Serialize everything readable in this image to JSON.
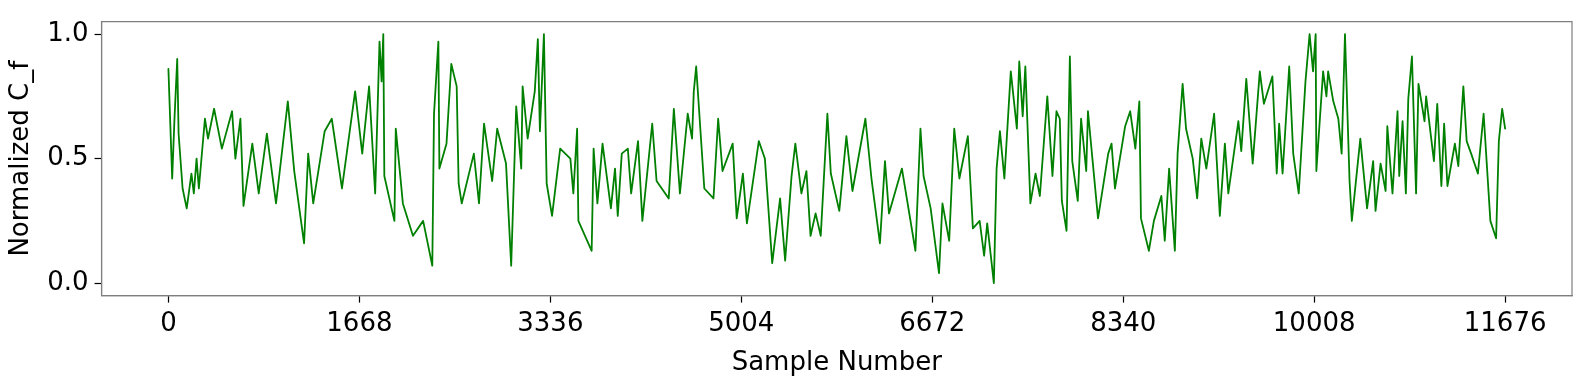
{
  "chart_data": {
    "type": "line",
    "xlabel": "Sample Number",
    "ylabel": "Normalized C_f",
    "grid": false,
    "legend": false,
    "marker": "none",
    "line_style": "solid",
    "xlim": [
      -584,
      12260
    ],
    "xticks": [
      0,
      1668,
      3336,
      5004,
      6672,
      8340,
      10008,
      11676
    ],
    "ylim": [
      -0.05,
      1.05
    ],
    "yticks": [
      {
        "value": 0,
        "label": "0.0"
      },
      {
        "value": 0.5,
        "label": "0.5"
      },
      {
        "value": 1,
        "label": "1.0"
      }
    ],
    "series": [
      {
        "color": "#008000",
        "x": [
          0,
          33,
          53,
          77,
          89,
          124,
          160,
          201,
          222,
          246,
          266,
          319,
          346,
          399,
          467,
          556,
          585,
          629,
          656,
          733,
          789,
          860,
          940,
          1043,
          1099,
          1185,
          1221,
          1265,
          1365,
          1427,
          1516,
          1631,
          1693,
          1753,
          1806,
          1844,
          1862,
          1877,
          1886,
          1974,
          1986,
          2048,
          2136,
          2225,
          2305,
          2320,
          2358,
          2367,
          2429,
          2471,
          2518,
          2535,
          2562,
          2668,
          2713,
          2757,
          2828,
          2872,
          2949,
          2994,
          3038,
          3082,
          3094,
          3138,
          3200,
          3227,
          3245,
          3280,
          3304,
          3351,
          3422,
          3511,
          3537,
          3570,
          3581,
          3697,
          3714,
          3747,
          3792,
          3865,
          3901,
          3925,
          3960,
          4013,
          4042,
          4102,
          4140,
          4226,
          4264,
          4370,
          4415,
          4468,
          4536,
          4574,
          4589,
          4610,
          4681,
          4761,
          4802,
          4840,
          4929,
          4964,
          5018,
          5053,
          5157,
          5210,
          5274,
          5343,
          5387,
          5443,
          5476,
          5529,
          5573,
          5609,
          5653,
          5698,
          5756,
          5786,
          5860,
          5922,
          5975,
          6088,
          6141,
          6215,
          6259,
          6294,
          6407,
          6525,
          6569,
          6596,
          6658,
          6731,
          6761,
          6820,
          6864,
          6909,
          6983,
          7027,
          7086,
          7125,
          7152,
          7210,
          7234,
          7263,
          7302,
          7358,
          7411,
          7432,
          7462,
          7485,
          7529,
          7574,
          7612,
          7677,
          7722,
          7757,
          7786,
          7804,
          7845,
          7874,
          7895,
          7943,
          7972,
          8017,
          8032,
          8120,
          8209,
          8238,
          8268,
          8357,
          8401,
          8446,
          8481,
          8495,
          8564,
          8608,
          8673,
          8703,
          8741,
          8791,
          8815,
          8859,
          8889,
          8947,
          8986,
          9022,
          9066,
          9134,
          9184,
          9228,
          9258,
          9346,
          9371,
          9415,
          9471,
          9533,
          9569,
          9643,
          9681,
          9702,
          9732,
          9790,
          9825,
          9873,
          9932,
          9968,
          9998,
          10021,
          10027,
          10086,
          10115,
          10130,
          10175,
          10219,
          10248,
          10277,
          10317,
          10337,
          10411,
          10470,
          10523,
          10544,
          10588,
          10632,
          10647,
          10692,
          10736,
          10751,
          10780,
          10809,
          10830,
          10862,
          10898,
          10919,
          10972,
          10986,
          11054,
          11083,
          11119,
          11143,
          11172,
          11237,
          11267,
          11311,
          11340,
          11379,
          11438,
          11488,
          11547,
          11597,
          11621,
          11650,
          11676
        ],
        "values": [
          0.86,
          0.42,
          0.66,
          0.9,
          0.6,
          0.38,
          0.3,
          0.44,
          0.36,
          0.5,
          0.38,
          0.66,
          0.58,
          0.7,
          0.54,
          0.69,
          0.5,
          0.66,
          0.31,
          0.56,
          0.36,
          0.6,
          0.32,
          0.73,
          0.45,
          0.16,
          0.52,
          0.32,
          0.61,
          0.66,
          0.38,
          0.77,
          0.52,
          0.79,
          0.36,
          0.97,
          0.81,
          1.0,
          0.43,
          0.25,
          0.62,
          0.32,
          0.19,
          0.25,
          0.07,
          0.68,
          0.97,
          0.46,
          0.56,
          0.88,
          0.79,
          0.4,
          0.32,
          0.52,
          0.32,
          0.64,
          0.41,
          0.62,
          0.48,
          0.07,
          0.71,
          0.46,
          0.79,
          0.58,
          0.77,
          0.98,
          0.61,
          1.0,
          0.4,
          0.27,
          0.54,
          0.5,
          0.36,
          0.62,
          0.25,
          0.13,
          0.54,
          0.32,
          0.56,
          0.3,
          0.46,
          0.27,
          0.52,
          0.54,
          0.36,
          0.57,
          0.25,
          0.64,
          0.41,
          0.34,
          0.7,
          0.36,
          0.68,
          0.58,
          0.77,
          0.87,
          0.38,
          0.34,
          0.66,
          0.45,
          0.56,
          0.26,
          0.44,
          0.24,
          0.57,
          0.5,
          0.08,
          0.34,
          0.09,
          0.43,
          0.56,
          0.36,
          0.45,
          0.19,
          0.28,
          0.19,
          0.68,
          0.44,
          0.29,
          0.59,
          0.37,
          0.66,
          0.42,
          0.16,
          0.49,
          0.28,
          0.46,
          0.13,
          0.62,
          0.43,
          0.3,
          0.04,
          0.32,
          0.17,
          0.62,
          0.42,
          0.59,
          0.22,
          0.25,
          0.11,
          0.24,
          0.0,
          0.46,
          0.61,
          0.42,
          0.85,
          0.62,
          0.89,
          0.67,
          0.87,
          0.32,
          0.44,
          0.35,
          0.75,
          0.43,
          0.69,
          0.66,
          0.33,
          0.21,
          0.91,
          0.49,
          0.33,
          0.66,
          0.45,
          0.69,
          0.26,
          0.52,
          0.56,
          0.38,
          0.63,
          0.69,
          0.54,
          0.73,
          0.26,
          0.13,
          0.25,
          0.35,
          0.17,
          0.46,
          0.13,
          0.52,
          0.8,
          0.62,
          0.5,
          0.34,
          0.58,
          0.46,
          0.68,
          0.27,
          0.56,
          0.36,
          0.65,
          0.53,
          0.82,
          0.48,
          0.85,
          0.72,
          0.83,
          0.44,
          0.64,
          0.44,
          0.87,
          0.52,
          0.36,
          0.81,
          1.0,
          0.85,
          1.0,
          0.45,
          0.85,
          0.75,
          0.85,
          0.73,
          0.66,
          0.52,
          1.0,
          0.41,
          0.25,
          0.58,
          0.3,
          0.49,
          0.29,
          0.48,
          0.37,
          0.63,
          0.36,
          0.69,
          0.43,
          0.65,
          0.36,
          0.74,
          0.91,
          0.36,
          0.8,
          0.65,
          0.75,
          0.49,
          0.72,
          0.39,
          0.64,
          0.39,
          0.56,
          0.47,
          0.79,
          0.57,
          0.52,
          0.44,
          0.68,
          0.25,
          0.18,
          0.57,
          0.7,
          0.62
        ]
      }
    ]
  }
}
